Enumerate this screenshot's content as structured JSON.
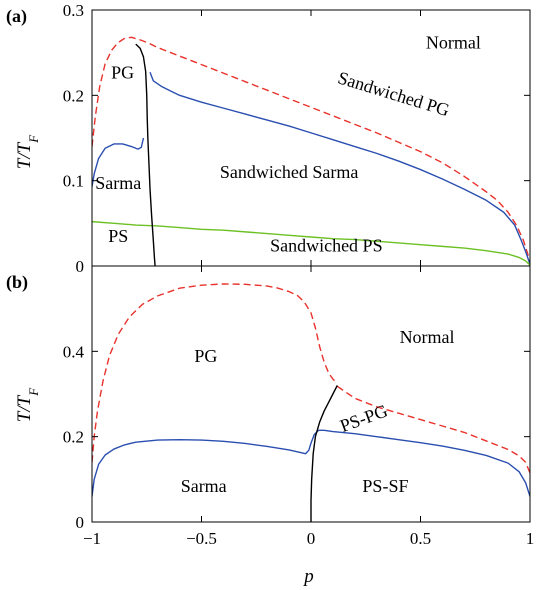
{
  "chart_data": [
    {
      "panel": "(a)",
      "type": "line",
      "ylabel": "T/T_F",
      "xlim": [
        -1,
        1
      ],
      "ylim": [
        0,
        0.3
      ],
      "yticks": [
        0,
        0.1,
        0.2,
        0.3
      ],
      "ytick_labels": [
        "0",
        "0.1",
        "0.2",
        "0.3"
      ],
      "regions": [
        {
          "label": "Normal",
          "x": 0.65,
          "y": 0.255,
          "angle": 0
        },
        {
          "label": "PG",
          "x": -0.86,
          "y": 0.22,
          "angle": 0
        },
        {
          "label": "Sandwiched PG",
          "x": 0.37,
          "y": 0.195,
          "angle": 17
        },
        {
          "label": "Sarma",
          "x": -0.88,
          "y": 0.09,
          "angle": 0
        },
        {
          "label": "Sandwiched Sarma",
          "x": -0.1,
          "y": 0.103,
          "angle": 0
        },
        {
          "label": "PS",
          "x": -0.88,
          "y": 0.028,
          "angle": 0
        },
        {
          "label": "Sandwiched PS",
          "x": 0.07,
          "y": 0.017,
          "angle": 0
        }
      ],
      "series": [
        {
          "color": "#e8322b",
          "dash": true,
          "points": [
            [
              -1,
              0.14
            ],
            [
              -0.985,
              0.175
            ],
            [
              -0.965,
              0.21
            ],
            [
              -0.94,
              0.237
            ],
            [
              -0.91,
              0.253
            ],
            [
              -0.88,
              0.262
            ],
            [
              -0.85,
              0.267
            ],
            [
              -0.82,
              0.268
            ],
            [
              -0.78,
              0.265
            ],
            [
              -0.74,
              0.261
            ],
            [
              -0.7,
              0.256
            ],
            [
              -0.6,
              0.246
            ],
            [
              -0.5,
              0.236
            ],
            [
              -0.4,
              0.226
            ],
            [
              -0.3,
              0.216
            ],
            [
              -0.2,
              0.206
            ],
            [
              -0.1,
              0.196
            ],
            [
              0,
              0.186
            ],
            [
              0.1,
              0.176
            ],
            [
              0.2,
              0.166
            ],
            [
              0.3,
              0.156
            ],
            [
              0.4,
              0.145
            ],
            [
              0.5,
              0.134
            ],
            [
              0.6,
              0.121
            ],
            [
              0.7,
              0.105
            ],
            [
              0.8,
              0.087
            ],
            [
              0.85,
              0.077
            ],
            [
              0.9,
              0.063
            ],
            [
              0.94,
              0.047
            ],
            [
              0.97,
              0.03
            ],
            [
              0.99,
              0.014
            ],
            [
              1,
              0.001
            ]
          ]
        },
        {
          "color": "#2b4fb0",
          "dash": false,
          "points": [
            [
              -1,
              0.093
            ],
            [
              -0.99,
              0.108
            ],
            [
              -0.97,
              0.126
            ],
            [
              -0.94,
              0.138
            ],
            [
              -0.9,
              0.143
            ],
            [
              -0.86,
              0.143
            ],
            [
              -0.82,
              0.14
            ],
            [
              -0.79,
              0.137
            ],
            [
              -0.775,
              0.139
            ],
            [
              -0.765,
              0.15
            ]
          ]
        },
        {
          "color": "#2b4fb0",
          "dash": false,
          "points": [
            [
              -0.735,
              0.227
            ],
            [
              -0.72,
              0.217
            ],
            [
              -0.68,
              0.21
            ],
            [
              -0.64,
              0.205
            ],
            [
              -0.6,
              0.2
            ],
            [
              -0.5,
              0.192
            ],
            [
              -0.4,
              0.185
            ],
            [
              -0.3,
              0.178
            ],
            [
              -0.2,
              0.171
            ],
            [
              -0.1,
              0.164
            ],
            [
              0,
              0.156
            ],
            [
              0.1,
              0.148
            ],
            [
              0.2,
              0.14
            ],
            [
              0.3,
              0.132
            ],
            [
              0.4,
              0.123
            ],
            [
              0.5,
              0.113
            ],
            [
              0.6,
              0.102
            ],
            [
              0.7,
              0.09
            ],
            [
              0.8,
              0.077
            ],
            [
              0.88,
              0.063
            ],
            [
              0.93,
              0.048
            ],
            [
              0.96,
              0.03
            ],
            [
              0.98,
              0.017
            ],
            [
              1,
              0.002
            ]
          ]
        },
        {
          "color": "#6cc024",
          "dash": false,
          "points": [
            [
              -1,
              0.052
            ],
            [
              -0.9,
              0.05
            ],
            [
              -0.8,
              0.048
            ],
            [
              -0.7,
              0.047
            ],
            [
              -0.6,
              0.045
            ],
            [
              -0.5,
              0.043
            ],
            [
              -0.4,
              0.042
            ],
            [
              -0.3,
              0.04
            ],
            [
              -0.2,
              0.038
            ],
            [
              -0.1,
              0.036
            ],
            [
              0,
              0.034
            ],
            [
              0.1,
              0.032
            ],
            [
              0.2,
              0.031
            ],
            [
              0.3,
              0.029
            ],
            [
              0.4,
              0.027
            ],
            [
              0.5,
              0.025
            ],
            [
              0.6,
              0.023
            ],
            [
              0.7,
              0.021
            ],
            [
              0.8,
              0.018
            ],
            [
              0.9,
              0.014
            ],
            [
              0.95,
              0.01
            ],
            [
              0.98,
              0.006
            ],
            [
              1,
              0.001
            ]
          ]
        },
        {
          "color": "#000000",
          "dash": false,
          "points": [
            [
              -0.8,
              0.26
            ],
            [
              -0.78,
              0.255
            ],
            [
              -0.765,
              0.245
            ],
            [
              -0.755,
              0.228
            ],
            [
              -0.75,
              0.2
            ],
            [
              -0.748,
              0.175
            ],
            [
              -0.745,
              0.15
            ],
            [
              -0.74,
              0.12
            ],
            [
              -0.735,
              0.09
            ],
            [
              -0.728,
              0.06
            ],
            [
              -0.72,
              0.03
            ],
            [
              -0.715,
              0.01
            ],
            [
              -0.712,
              0
            ]
          ]
        }
      ]
    },
    {
      "panel": "(b)",
      "type": "line",
      "xlabel": "p",
      "ylabel": "T/T_F",
      "xlim": [
        -1,
        1
      ],
      "ylim": [
        0,
        0.6
      ],
      "xticks": [
        -1,
        -0.5,
        0,
        0.5,
        1
      ],
      "xtick_labels": [
        "−1",
        "−0.5",
        "0",
        "0.5",
        "1"
      ],
      "yticks": [
        0,
        0.2,
        0.4
      ],
      "ytick_labels": [
        "0",
        "0.2",
        "0.4"
      ],
      "regions": [
        {
          "label": "Normal",
          "x": 0.53,
          "y": 0.42,
          "angle": 0
        },
        {
          "label": "PG",
          "x": -0.48,
          "y": 0.375,
          "angle": 0
        },
        {
          "label": "PS-PG",
          "x": 0.25,
          "y": 0.23,
          "angle": -20
        },
        {
          "label": "Sarma",
          "x": -0.49,
          "y": 0.07,
          "angle": 0
        },
        {
          "label": "PS-SF",
          "x": 0.34,
          "y": 0.07,
          "angle": 0
        }
      ],
      "series": [
        {
          "color": "#e8322b",
          "dash": true,
          "points": [
            [
              -1,
              0.14
            ],
            [
              -0.99,
              0.2
            ],
            [
              -0.975,
              0.26
            ],
            [
              -0.95,
              0.33
            ],
            [
              -0.92,
              0.39
            ],
            [
              -0.88,
              0.44
            ],
            [
              -0.83,
              0.48
            ],
            [
              -0.77,
              0.51
            ],
            [
              -0.7,
              0.53
            ],
            [
              -0.6,
              0.548
            ],
            [
              -0.5,
              0.555
            ],
            [
              -0.4,
              0.558
            ],
            [
              -0.3,
              0.557
            ],
            [
              -0.2,
              0.553
            ],
            [
              -0.15,
              0.548
            ],
            [
              -0.1,
              0.54
            ],
            [
              -0.06,
              0.53
            ],
            [
              -0.03,
              0.515
            ],
            [
              0,
              0.49
            ],
            [
              0.02,
              0.455
            ],
            [
              0.04,
              0.41
            ],
            [
              0.06,
              0.375
            ],
            [
              0.08,
              0.35
            ],
            [
              0.1,
              0.335
            ],
            [
              0.12,
              0.325
            ]
          ]
        },
        {
          "color": "#e8322b",
          "dash": true,
          "points": [
            [
              0.12,
              0.318
            ],
            [
              0.2,
              0.29
            ],
            [
              0.3,
              0.27
            ],
            [
              0.4,
              0.255
            ],
            [
              0.5,
              0.24
            ],
            [
              0.6,
              0.225
            ],
            [
              0.7,
              0.21
            ],
            [
              0.8,
              0.19
            ],
            [
              0.9,
              0.17
            ],
            [
              0.95,
              0.155
            ],
            [
              0.98,
              0.14
            ],
            [
              1,
              0.115
            ]
          ]
        },
        {
          "color": "#2b4fb0",
          "dash": false,
          "points": [
            [
              -1,
              0.06
            ],
            [
              -0.99,
              0.1
            ],
            [
              -0.97,
              0.135
            ],
            [
              -0.94,
              0.157
            ],
            [
              -0.9,
              0.171
            ],
            [
              -0.85,
              0.181
            ],
            [
              -0.8,
              0.187
            ],
            [
              -0.7,
              0.192
            ],
            [
              -0.6,
              0.193
            ],
            [
              -0.5,
              0.192
            ],
            [
              -0.4,
              0.189
            ],
            [
              -0.3,
              0.184
            ],
            [
              -0.2,
              0.177
            ],
            [
              -0.1,
              0.169
            ],
            [
              -0.05,
              0.163
            ],
            [
              -0.025,
              0.16
            ],
            [
              -0.01,
              0.168
            ],
            [
              0,
              0.185
            ],
            [
              0.015,
              0.205
            ],
            [
              0.035,
              0.215
            ],
            [
              0.06,
              0.215
            ],
            [
              0.1,
              0.212
            ],
            [
              0.2,
              0.207
            ],
            [
              0.3,
              0.2
            ],
            [
              0.4,
              0.193
            ],
            [
              0.5,
              0.186
            ],
            [
              0.6,
              0.178
            ],
            [
              0.7,
              0.168
            ],
            [
              0.8,
              0.156
            ],
            [
              0.9,
              0.138
            ],
            [
              0.95,
              0.118
            ],
            [
              0.98,
              0.092
            ],
            [
              1,
              0.06
            ]
          ]
        },
        {
          "color": "#000000",
          "dash": false,
          "points": [
            [
              0.12,
              0.32
            ],
            [
              0.1,
              0.3
            ],
            [
              0.08,
              0.28
            ],
            [
              0.06,
              0.26
            ],
            [
              0.04,
              0.235
            ],
            [
              0.02,
              0.2
            ],
            [
              0.01,
              0.16
            ],
            [
              0.003,
              0.1
            ],
            [
              0,
              0.05
            ],
            [
              0,
              0
            ]
          ]
        }
      ]
    }
  ]
}
